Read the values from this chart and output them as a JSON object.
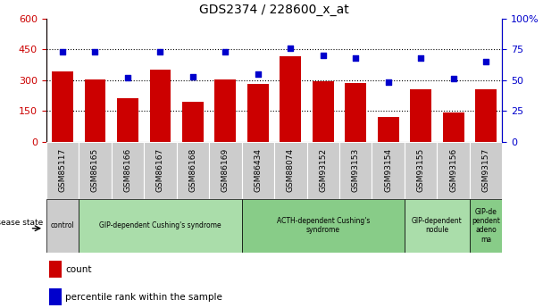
{
  "title": "GDS2374 / 228600_x_at",
  "samples": [
    "GSM85117",
    "GSM86165",
    "GSM86166",
    "GSM86167",
    "GSM86168",
    "GSM86169",
    "GSM86434",
    "GSM88074",
    "GSM93152",
    "GSM93153",
    "GSM93154",
    "GSM93155",
    "GSM93156",
    "GSM93157"
  ],
  "counts": [
    340,
    305,
    210,
    350,
    195,
    305,
    280,
    415,
    295,
    285,
    120,
    255,
    140,
    255
  ],
  "percentiles": [
    73,
    73,
    52,
    73,
    53,
    73,
    55,
    76,
    70,
    68,
    48,
    68,
    51,
    65
  ],
  "bar_color": "#cc0000",
  "dot_color": "#0000cc",
  "ylim_left": [
    0,
    600
  ],
  "ylim_right": [
    0,
    100
  ],
  "yticks_left": [
    0,
    150,
    300,
    450,
    600
  ],
  "yticks_right": [
    0,
    25,
    50,
    75,
    100
  ],
  "disease_groups": [
    {
      "label": "control",
      "start": 0,
      "end": 1,
      "color": "#cccccc"
    },
    {
      "label": "GIP-dependent Cushing's syndrome",
      "start": 1,
      "end": 6,
      "color": "#aaddaa"
    },
    {
      "label": "ACTH-dependent Cushing's\nsyndrome",
      "start": 6,
      "end": 11,
      "color": "#88cc88"
    },
    {
      "label": "GIP-dependent\nnodule",
      "start": 11,
      "end": 13,
      "color": "#aaddaa"
    },
    {
      "label": "GIP-de\npendent\nadeno\nma",
      "start": 13,
      "end": 14,
      "color": "#88cc88"
    }
  ],
  "tick_area_color": "#cccccc",
  "left_axis_color": "#cc0000",
  "right_axis_color": "#0000cc"
}
